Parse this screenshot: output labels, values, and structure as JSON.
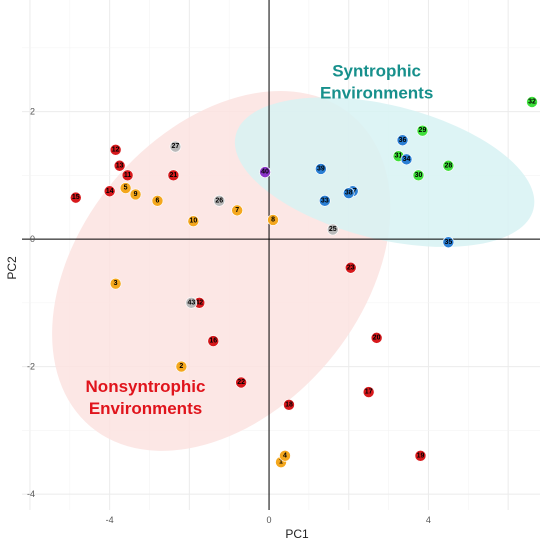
{
  "chart_data": {
    "type": "scatter",
    "xlabel": "PC1",
    "ylabel": "PC2",
    "xlim": [
      -6.2,
      6.8
    ],
    "ylim": [
      -4.25,
      3.75
    ],
    "xticks": [
      -4,
      0,
      4
    ],
    "yticks": [
      -4,
      -2,
      0,
      2
    ],
    "tick_labels_x": [
      "-4",
      "0",
      "4"
    ],
    "tick_labels_y": [
      "-4",
      "-2",
      "0",
      "2"
    ],
    "grid": true,
    "colors": {
      "red": "#d7191c",
      "orange": "#f4a71d",
      "gray": "#b9b9b9",
      "blue": "#2a7fd4",
      "green": "#3ee03b",
      "purple": "#8a35c9",
      "nonsyntrophic_fill": "#fbe3e1",
      "syntrophic_fill": "#d7f2f3",
      "nonsyntrophic_text": "#e0141c",
      "syntrophic_text": "#17908c"
    },
    "ellipses": [
      {
        "group": "nonsyntrophic",
        "cx": -1.2,
        "cy": -0.5,
        "rx": 5.1,
        "ry": 2.2,
        "angle_deg": -50,
        "fill": "nonsyntrophic_fill"
      },
      {
        "group": "syntrophic",
        "cx": 2.9,
        "cy": 1.05,
        "rx": 3.85,
        "ry": 1.05,
        "angle_deg": 14,
        "fill": "syntrophic_fill"
      }
    ],
    "annotations": [
      {
        "lines": [
          "Syntrophic",
          "Environments"
        ],
        "x": 2.7,
        "y": 2.55,
        "color": "syntrophic_text"
      },
      {
        "lines": [
          "Nonsyntrophic",
          "Environments"
        ],
        "x": -3.1,
        "y": -2.4,
        "color": "nonsyntrophic_text"
      }
    ],
    "points": [
      {
        "label": "1",
        "x": 0.3,
        "y": -3.5,
        "color": "orange"
      },
      {
        "label": "2",
        "x": -2.2,
        "y": -2.0,
        "color": "orange"
      },
      {
        "label": "3",
        "x": -3.85,
        "y": -0.7,
        "color": "orange"
      },
      {
        "label": "4",
        "x": 0.4,
        "y": -3.4,
        "color": "orange"
      },
      {
        "label": "5",
        "x": -3.6,
        "y": 0.8,
        "color": "orange"
      },
      {
        "label": "6",
        "x": -2.8,
        "y": 0.6,
        "color": "orange"
      },
      {
        "label": "7",
        "x": -0.8,
        "y": 0.45,
        "color": "orange"
      },
      {
        "label": "8",
        "x": 0.1,
        "y": 0.3,
        "color": "orange"
      },
      {
        "label": "9",
        "x": -3.35,
        "y": 0.7,
        "color": "orange"
      },
      {
        "label": "10",
        "x": -1.9,
        "y": 0.28,
        "color": "orange"
      },
      {
        "label": "11",
        "x": -3.55,
        "y": 1.0,
        "color": "red"
      },
      {
        "label": "12",
        "x": -3.85,
        "y": 1.4,
        "color": "red"
      },
      {
        "label": "13",
        "x": -3.75,
        "y": 1.15,
        "color": "red"
      },
      {
        "label": "14",
        "x": -4.0,
        "y": 0.75,
        "color": "red"
      },
      {
        "label": "15",
        "x": -4.85,
        "y": 0.65,
        "color": "red"
      },
      {
        "label": "16",
        "x": -1.4,
        "y": -1.6,
        "color": "red"
      },
      {
        "label": "17",
        "x": 2.5,
        "y": -2.4,
        "color": "red"
      },
      {
        "label": "18",
        "x": 0.5,
        "y": -2.6,
        "color": "red"
      },
      {
        "label": "19",
        "x": 3.8,
        "y": -3.4,
        "color": "red"
      },
      {
        "label": "20",
        "x": 2.7,
        "y": -1.55,
        "color": "red"
      },
      {
        "label": "21",
        "x": -2.4,
        "y": 1.0,
        "color": "red"
      },
      {
        "label": "22",
        "x": -0.7,
        "y": -2.25,
        "color": "red"
      },
      {
        "label": "23",
        "x": 2.05,
        "y": -0.45,
        "color": "red"
      },
      {
        "label": "24",
        "x": -1.75,
        "y": -1.0,
        "color": "red"
      },
      {
        "label": "25",
        "x": 1.6,
        "y": 0.15,
        "color": "gray"
      },
      {
        "label": "26",
        "x": -1.25,
        "y": 0.6,
        "color": "gray"
      },
      {
        "label": "27",
        "x": -2.35,
        "y": 1.45,
        "color": "gray"
      },
      {
        "label": "28",
        "x": 4.5,
        "y": 1.15,
        "color": "green"
      },
      {
        "label": "29",
        "x": 3.85,
        "y": 1.7,
        "color": "green"
      },
      {
        "label": "30",
        "x": 3.75,
        "y": 1.0,
        "color": "green"
      },
      {
        "label": "31",
        "x": 3.25,
        "y": 1.3,
        "color": "green"
      },
      {
        "label": "32",
        "x": 6.6,
        "y": 2.15,
        "color": "green"
      },
      {
        "label": "33",
        "x": 1.4,
        "y": 0.6,
        "color": "blue"
      },
      {
        "label": "34",
        "x": 3.45,
        "y": 1.25,
        "color": "blue"
      },
      {
        "label": "35",
        "x": 4.5,
        "y": -0.05,
        "color": "blue"
      },
      {
        "label": "36",
        "x": 3.35,
        "y": 1.55,
        "color": "blue"
      },
      {
        "label": "37",
        "x": 2.1,
        "y": 0.75,
        "color": "blue"
      },
      {
        "label": "38",
        "x": 2.0,
        "y": 0.72,
        "color": "blue"
      },
      {
        "label": "39",
        "x": 1.3,
        "y": 1.1,
        "color": "blue"
      },
      {
        "label": "40",
        "x": -0.1,
        "y": 1.05,
        "color": "purple"
      },
      {
        "label": "42",
        "x": -1.75,
        "y": -1.0,
        "color": "red"
      },
      {
        "label": "43",
        "x": -1.95,
        "y": -1.0,
        "color": "gray"
      }
    ]
  }
}
